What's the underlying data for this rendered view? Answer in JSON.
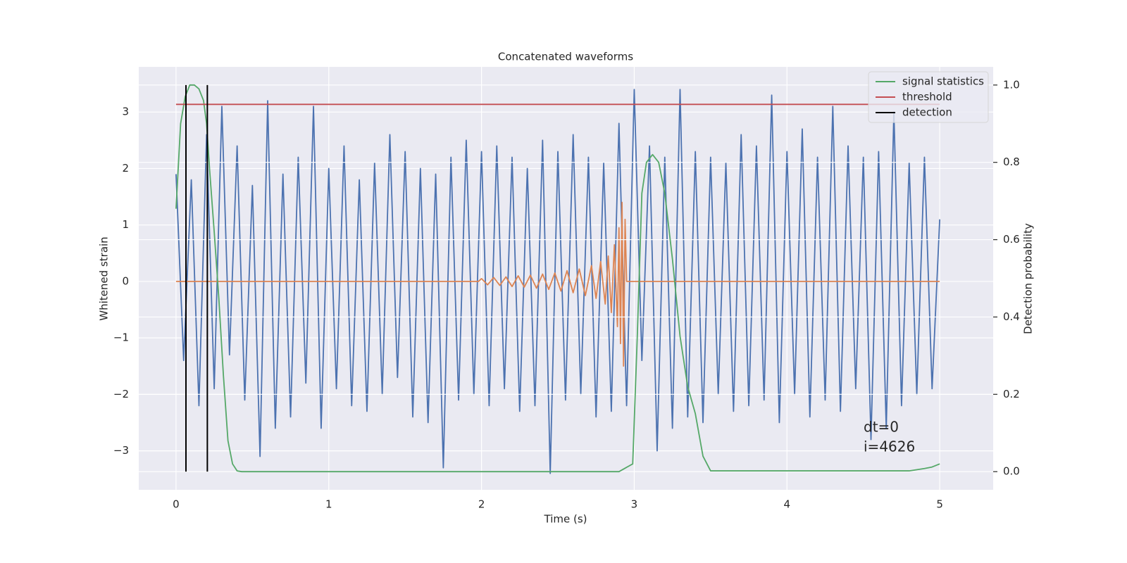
{
  "chart_data": {
    "type": "line",
    "title": "Concatenated waveforms",
    "xlabel": "Time (s)",
    "ylabel": "Whitened strain",
    "y2label": "Detection probability",
    "xlim": [
      -0.244,
      5.35
    ],
    "ylim": [
      -3.69,
      3.8
    ],
    "y2lim": [
      -0.047,
      1.047
    ],
    "xticks": [
      0,
      1,
      2,
      3,
      4,
      5
    ],
    "yticks": [
      {
        "value": -3,
        "label": "−3"
      },
      {
        "value": -2,
        "label": "−2"
      },
      {
        "value": -1,
        "label": "−1"
      },
      0,
      1,
      2,
      3
    ],
    "y2ticks": [
      {
        "value": 0,
        "label": "0.0"
      },
      0.2,
      0.4,
      0.6,
      0.8,
      {
        "value": 1,
        "label": "1.0"
      }
    ],
    "grid": true,
    "legend": "upper right",
    "annotations": [
      "dt=0",
      "i=4626"
    ],
    "series": [
      {
        "color": "#4c72b0",
        "x": [
          0,
          0.05,
          0.1,
          0.15,
          0.2,
          0.25,
          0.3,
          0.35,
          0.4,
          0.45,
          0.5,
          0.55,
          0.6,
          0.65,
          0.7,
          0.75,
          0.8,
          0.85,
          0.9,
          0.95,
          1,
          1.05,
          1.1,
          1.15,
          1.2,
          1.25,
          1.3,
          1.35,
          1.4,
          1.45,
          1.5,
          1.55,
          1.6,
          1.65,
          1.7,
          1.75,
          1.8,
          1.85,
          1.9,
          1.95,
          2,
          2.05,
          2.1,
          2.15,
          2.2,
          2.25,
          2.3,
          2.35,
          2.4,
          2.45,
          2.5,
          2.55,
          2.6,
          2.65,
          2.7,
          2.75,
          2.8,
          2.85,
          2.9,
          2.95,
          3,
          3.05,
          3.1,
          3.15,
          3.2,
          3.25,
          3.3,
          3.35,
          3.4,
          3.45,
          3.5,
          3.55,
          3.6,
          3.65,
          3.7,
          3.75,
          3.8,
          3.85,
          3.9,
          3.95,
          4,
          4.05,
          4.1,
          4.15,
          4.2,
          4.25,
          4.3,
          4.35,
          4.4,
          4.45,
          4.5,
          4.55,
          4.6,
          4.65,
          4.7,
          4.75,
          4.8,
          4.85,
          4.9,
          4.95,
          5
        ],
        "values": [
          1.9,
          -1.4,
          1.8,
          -2.2,
          2.6,
          -1.9,
          3.1,
          -1.3,
          2.4,
          -2.1,
          1.7,
          -3.1,
          3.2,
          -2.6,
          1.9,
          -2.4,
          2.2,
          -1.8,
          3.1,
          -2.6,
          2.0,
          -1.9,
          2.4,
          -2.2,
          1.8,
          -2.3,
          2.1,
          -2.0,
          2.6,
          -1.7,
          2.3,
          -2.4,
          2.0,
          -2.5,
          1.9,
          -3.3,
          2.2,
          -2.1,
          2.5,
          -2.0,
          2.3,
          -2.2,
          2.4,
          -1.9,
          2.2,
          -2.3,
          2.0,
          -2.2,
          2.5,
          -3.4,
          2.3,
          -2.1,
          2.6,
          -2.0,
          2.2,
          -2.4,
          2.1,
          -2.3,
          2.8,
          -2.2,
          3.4,
          -1.4,
          2.4,
          -3.0,
          2.2,
          -2.6,
          3.4,
          -2.4,
          2.3,
          -2.5,
          2.2,
          -2.0,
          2.1,
          -2.3,
          2.6,
          -2.2,
          2.4,
          -2.1,
          3.3,
          -2.5,
          2.3,
          -2.0,
          2.7,
          -2.4,
          2.2,
          -2.1,
          3.1,
          -2.3,
          2.4,
          -1.9,
          2.2,
          -2.8,
          2.3,
          -2.6,
          3.0,
          -2.2,
          2.1,
          -2.0,
          2.2,
          -1.9,
          1.1
        ]
      },
      {
        "color": "#dd8452",
        "x": [
          0,
          1.98,
          2.0,
          2.04,
          2.08,
          2.12,
          2.16,
          2.2,
          2.24,
          2.28,
          2.32,
          2.36,
          2.4,
          2.44,
          2.48,
          2.52,
          2.56,
          2.6,
          2.64,
          2.68,
          2.72,
          2.75,
          2.78,
          2.81,
          2.83,
          2.85,
          2.87,
          2.89,
          2.9,
          2.91,
          2.92,
          2.93,
          2.94,
          2.95,
          5
        ],
        "values": [
          0,
          0,
          0.05,
          -0.06,
          0.07,
          -0.07,
          0.08,
          -0.09,
          0.1,
          -0.1,
          0.11,
          -0.12,
          0.13,
          -0.14,
          0.15,
          -0.17,
          0.19,
          -0.2,
          0.22,
          -0.25,
          0.28,
          -0.3,
          0.35,
          -0.4,
          0.45,
          -0.55,
          0.65,
          -0.8,
          0.95,
          -1.1,
          1.4,
          -1.5,
          1.1,
          0,
          0
        ]
      },
      {
        "name": "signal statistics",
        "color": "#55a868",
        "axis": "y2",
        "x": [
          0,
          0.03,
          0.06,
          0.09,
          0.12,
          0.15,
          0.18,
          0.2,
          0.22,
          0.25,
          0.28,
          0.31,
          0.34,
          0.37,
          0.4,
          0.43,
          0.5,
          1,
          2,
          2.9,
          2.99,
          3.02,
          3.05,
          3.08,
          3.12,
          3.16,
          3.2,
          3.25,
          3.3,
          3.35,
          3.4,
          3.45,
          3.5,
          4,
          4.8,
          4.9,
          4.95,
          5
        ],
        "values": [
          0.68,
          0.9,
          0.97,
          1.0,
          1.0,
          0.99,
          0.96,
          0.9,
          0.78,
          0.62,
          0.45,
          0.25,
          0.08,
          0.02,
          0.002,
          0,
          0,
          0,
          0,
          0,
          0.02,
          0.35,
          0.72,
          0.8,
          0.82,
          0.8,
          0.72,
          0.55,
          0.35,
          0.22,
          0.15,
          0.04,
          0.002,
          0.002,
          0.002,
          0.008,
          0.012,
          0.02
        ]
      },
      {
        "name": "threshold",
        "color": "#c44e52",
        "axis": "y2",
        "x": [
          0,
          5
        ],
        "values": [
          0.95,
          0.95
        ]
      },
      {
        "name": "detection",
        "color": "#000000",
        "axis": "y2",
        "kind": "vlines",
        "x": [
          0.065,
          0.205
        ],
        "ymin": [
          0,
          0
        ],
        "ymax": [
          1,
          1
        ]
      }
    ]
  }
}
